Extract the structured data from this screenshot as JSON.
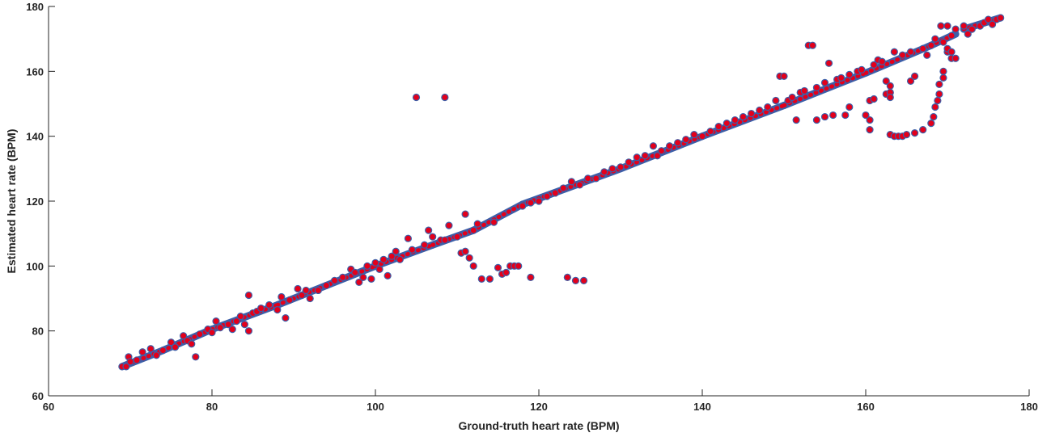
{
  "chart_data": {
    "type": "scatter",
    "xlabel": "Ground-truth heart rate (BPM)",
    "ylabel": "Estimated heart rate (BPM)",
    "xlim": [
      60,
      180
    ],
    "ylim": [
      60,
      180
    ],
    "x_ticks": [
      60,
      80,
      100,
      120,
      140,
      160,
      180
    ],
    "y_ticks": [
      60,
      80,
      100,
      120,
      140,
      160,
      180
    ],
    "grid": false,
    "marker_colors": {
      "fill": "#e3001b",
      "edge": "#3d5fa8"
    },
    "line_segments": [
      [
        [
          69,
          69
        ],
        [
          74,
          74
        ]
      ],
      [
        [
          74,
          74
        ],
        [
          80,
          80.5
        ]
      ],
      [
        [
          80,
          80.5
        ],
        [
          88,
          88
        ]
      ],
      [
        [
          88,
          88
        ],
        [
          100,
          100
        ]
      ],
      [
        [
          100,
          100
        ],
        [
          107,
          106.5
        ]
      ],
      [
        [
          107,
          106.5
        ],
        [
          112,
          111
        ]
      ],
      [
        [
          112,
          111
        ],
        [
          118,
          119
        ]
      ],
      [
        [
          118,
          119
        ],
        [
          130,
          130
        ]
      ],
      [
        [
          130,
          130
        ],
        [
          140,
          140
        ]
      ],
      [
        [
          140,
          140
        ],
        [
          150,
          149.5
        ]
      ],
      [
        [
          150,
          149.5
        ],
        [
          160,
          159.5
        ]
      ],
      [
        [
          160,
          159.5
        ],
        [
          168,
          168
        ]
      ],
      [
        [
          168,
          168
        ],
        [
          171,
          171.5
        ]
      ],
      [
        [
          172,
          173
        ],
        [
          176.5,
          176.5
        ]
      ]
    ],
    "points": [
      [
        69,
        69
      ],
      [
        69.5,
        69
      ],
      [
        69.8,
        72
      ],
      [
        70,
        70.5
      ],
      [
        70.8,
        71
      ],
      [
        71.5,
        73.5
      ],
      [
        72.5,
        74.5
      ],
      [
        73.2,
        72.5
      ],
      [
        74,
        74
      ],
      [
        75,
        76.5
      ],
      [
        75.5,
        75
      ],
      [
        76.5,
        78.5
      ],
      [
        77,
        77
      ],
      [
        77.5,
        76
      ],
      [
        78,
        72
      ],
      [
        78.5,
        79
      ],
      [
        79.5,
        80.5
      ],
      [
        80,
        79.5
      ],
      [
        80.5,
        83
      ],
      [
        81,
        81
      ],
      [
        82,
        82
      ],
      [
        82.5,
        80.5
      ],
      [
        83,
        83
      ],
      [
        83.5,
        84.5
      ],
      [
        84,
        82
      ],
      [
        84.5,
        91
      ],
      [
        84.5,
        80
      ],
      [
        85,
        85.5
      ],
      [
        85.5,
        86
      ],
      [
        86,
        87
      ],
      [
        87,
        88
      ],
      [
        88,
        86.5
      ],
      [
        88.5,
        90.5
      ],
      [
        89,
        84
      ],
      [
        89.5,
        89.5
      ],
      [
        90.5,
        93
      ],
      [
        91,
        91
      ],
      [
        91.5,
        92.5
      ],
      [
        92,
        90
      ],
      [
        93,
        92.5
      ],
      [
        94,
        94
      ],
      [
        95,
        95.5
      ],
      [
        96,
        96.5
      ],
      [
        97,
        99
      ],
      [
        97.5,
        98
      ],
      [
        98,
        95
      ],
      [
        98.5,
        96.5
      ],
      [
        99,
        100
      ],
      [
        99.5,
        96
      ],
      [
        100,
        101
      ],
      [
        100.5,
        99
      ],
      [
        101,
        102
      ],
      [
        101.5,
        97
      ],
      [
        102,
        103
      ],
      [
        102.5,
        104.5
      ],
      [
        103,
        102
      ],
      [
        104,
        108.5
      ],
      [
        104.5,
        105
      ],
      [
        105,
        152
      ],
      [
        106,
        106.5
      ],
      [
        106.5,
        111
      ],
      [
        107,
        109
      ],
      [
        108,
        108
      ],
      [
        108.5,
        152
      ],
      [
        108.5,
        108
      ],
      [
        109,
        112.5
      ],
      [
        110,
        109
      ],
      [
        110.5,
        104
      ],
      [
        111,
        116
      ],
      [
        111,
        104.5
      ],
      [
        111.5,
        102.5
      ],
      [
        112,
        100
      ],
      [
        112,
        111
      ],
      [
        112.5,
        113
      ],
      [
        113,
        96
      ],
      [
        114,
        96
      ],
      [
        114.5,
        113.5
      ],
      [
        115,
        99.5
      ],
      [
        115.5,
        97.5
      ],
      [
        116,
        98
      ],
      [
        116.5,
        100
      ],
      [
        117,
        100
      ],
      [
        117.5,
        100
      ],
      [
        118,
        118.5
      ],
      [
        119,
        96.5
      ],
      [
        119,
        119.5
      ],
      [
        120,
        120
      ],
      [
        121,
        121.5
      ],
      [
        122,
        122.5
      ],
      [
        123,
        124
      ],
      [
        123.5,
        96.5
      ],
      [
        124,
        126
      ],
      [
        124.5,
        95.5
      ],
      [
        125,
        125
      ],
      [
        125.5,
        95.5
      ],
      [
        126,
        127
      ],
      [
        127,
        127
      ],
      [
        128,
        129
      ],
      [
        129,
        130
      ],
      [
        130,
        130.5
      ],
      [
        131,
        132
      ],
      [
        132,
        133.5
      ],
      [
        133,
        134
      ],
      [
        134,
        137
      ],
      [
        134.5,
        134
      ],
      [
        135,
        135.5
      ],
      [
        136,
        137
      ],
      [
        137,
        138
      ],
      [
        138,
        139
      ],
      [
        139,
        140.5
      ],
      [
        140,
        140
      ],
      [
        141,
        141.5
      ],
      [
        142,
        143
      ],
      [
        143,
        144
      ],
      [
        144,
        145
      ],
      [
        145,
        146
      ],
      [
        146,
        147
      ],
      [
        147,
        148
      ],
      [
        148,
        149
      ],
      [
        149,
        151
      ],
      [
        149.5,
        158.5
      ],
      [
        150,
        158.5
      ],
      [
        150.5,
        151
      ],
      [
        151,
        152
      ],
      [
        151.5,
        145
      ],
      [
        152,
        153.5
      ],
      [
        152.5,
        154
      ],
      [
        153,
        168
      ],
      [
        153.5,
        168
      ],
      [
        154,
        155
      ],
      [
        154,
        145
      ],
      [
        155,
        156.5
      ],
      [
        155,
        146
      ],
      [
        155.5,
        162.5
      ],
      [
        156,
        146.5
      ],
      [
        156.5,
        157.5
      ],
      [
        157,
        158
      ],
      [
        157.5,
        146.5
      ],
      [
        158,
        149
      ],
      [
        158,
        159
      ],
      [
        159,
        160
      ],
      [
        159.5,
        160.5
      ],
      [
        160,
        146.5
      ],
      [
        160.5,
        151
      ],
      [
        160.5,
        145
      ],
      [
        160.5,
        142
      ],
      [
        161,
        162
      ],
      [
        161,
        151.5
      ],
      [
        161.5,
        163.5
      ],
      [
        162,
        163
      ],
      [
        162.5,
        157
      ],
      [
        162.5,
        153
      ],
      [
        163,
        155.5
      ],
      [
        163,
        153.5
      ],
      [
        163,
        152
      ],
      [
        163,
        140.5
      ],
      [
        163.5,
        140
      ],
      [
        163.5,
        166
      ],
      [
        164,
        140
      ],
      [
        164.5,
        140
      ],
      [
        164.5,
        165
      ],
      [
        165,
        140.5
      ],
      [
        165.5,
        157
      ],
      [
        165.5,
        166
      ],
      [
        166,
        158.5
      ],
      [
        166,
        141
      ],
      [
        167,
        167
      ],
      [
        167,
        142
      ],
      [
        167.5,
        165
      ],
      [
        168,
        144
      ],
      [
        168,
        168
      ],
      [
        168.3,
        146
      ],
      [
        168.5,
        149
      ],
      [
        168.5,
        170
      ],
      [
        168.8,
        151
      ],
      [
        169,
        153
      ],
      [
        169,
        156
      ],
      [
        169.2,
        174
      ],
      [
        169.5,
        160
      ],
      [
        169.5,
        158
      ],
      [
        169.5,
        169
      ],
      [
        170,
        166
      ],
      [
        170,
        167
      ],
      [
        170,
        174
      ],
      [
        170.5,
        164
      ],
      [
        170.5,
        166
      ],
      [
        170.5,
        171
      ],
      [
        171,
        164
      ],
      [
        171,
        173
      ],
      [
        172,
        174
      ],
      [
        172.5,
        171.5
      ],
      [
        173,
        173
      ],
      [
        174,
        174
      ],
      [
        174.5,
        175
      ],
      [
        175,
        176
      ],
      [
        175.5,
        174.5
      ],
      [
        176,
        176
      ],
      [
        176.5,
        176.5
      ]
    ]
  }
}
